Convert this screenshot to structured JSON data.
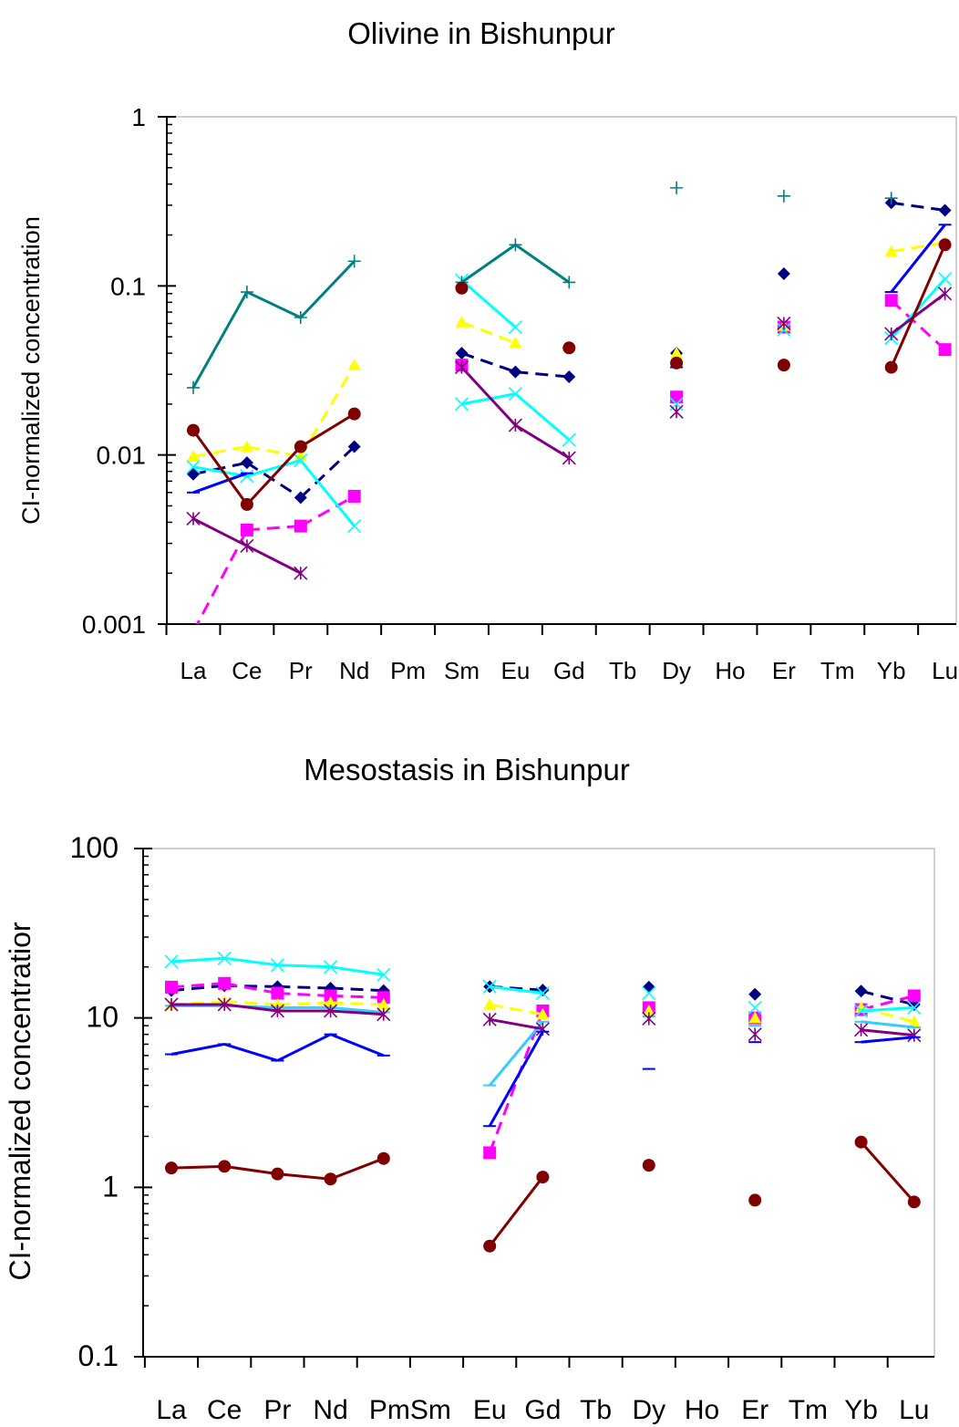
{
  "chart_data": [
    {
      "type": "line",
      "title": "Olivine in Bishunpur",
      "xlabel": "",
      "ylabel": "CI-normalized concentration",
      "y_scale": "log",
      "ylim": [
        0.001,
        1
      ],
      "y_ticks": [
        "1",
        "0.1",
        "0.01",
        "0.001"
      ],
      "grid": false,
      "legend": "none",
      "categories": [
        "La",
        "Ce",
        "Pr",
        "Nd",
        "Pm",
        "Sm",
        "Eu",
        "Gd",
        "Tb",
        "Dy",
        "Ho",
        "Er",
        "Tm",
        "Yb",
        "Lu"
      ],
      "series": [
        {
          "color": "#000080",
          "dash": true,
          "marker": "diamond",
          "values": [
            0.0077,
            0.009,
            0.0056,
            0.0112,
            null,
            0.04,
            0.031,
            0.029,
            null,
            0.04,
            null,
            0.118,
            null,
            0.31,
            0.28
          ]
        },
        {
          "color": "#ff00ff",
          "dash": true,
          "marker": "square",
          "values": [
            0.0009,
            0.0036,
            0.0038,
            0.0057,
            null,
            0.034,
            null,
            null,
            null,
            0.022,
            null,
            0.057,
            null,
            0.082,
            0.042
          ]
        },
        {
          "color": "#ffff00",
          "dash": true,
          "marker": "triangle",
          "values": [
            0.0098,
            0.0112,
            0.0098,
            0.034,
            null,
            0.061,
            0.046,
            null,
            null,
            0.04,
            null,
            0.058,
            null,
            0.16,
            0.18
          ]
        },
        {
          "color": "#00ffff",
          "dash": false,
          "marker": "x",
          "values": [
            0.0085,
            0.0075,
            0.0093,
            0.0038,
            null,
            0.108,
            0.057,
            null,
            null,
            null,
            null,
            null,
            null,
            null,
            null
          ]
        },
        {
          "color": "#00ffff",
          "dash": false,
          "marker": "x",
          "values": [
            null,
            null,
            null,
            null,
            null,
            0.02,
            0.023,
            0.0123,
            null,
            0.02,
            null,
            0.055,
            null,
            0.049,
            0.11
          ]
        },
        {
          "color": "#800080",
          "dash": false,
          "marker": "star",
          "values": [
            0.0042,
            0.0029,
            0.002,
            null,
            null,
            0.033,
            0.015,
            0.0096,
            null,
            0.018,
            null,
            0.06,
            null,
            0.052,
            0.09
          ]
        },
        {
          "color": "#0000ff",
          "dash": false,
          "marker": "dash",
          "values": [
            0.006,
            0.0078,
            null,
            null,
            null,
            null,
            null,
            null,
            null,
            0.033,
            null,
            null,
            null,
            0.092,
            0.23
          ]
        },
        {
          "color": "#008080",
          "dash": false,
          "marker": "plus",
          "values": [
            0.025,
            0.092,
            0.065,
            0.14,
            null,
            0.105,
            0.175,
            0.105,
            null,
            0.38,
            null,
            0.34,
            null,
            0.33,
            null
          ]
        },
        {
          "color": "#800000",
          "dash": false,
          "marker": "circle",
          "values": [
            0.014,
            0.0051,
            0.0112,
            0.0175,
            null,
            0.097,
            null,
            0.043,
            null,
            0.035,
            null,
            0.034,
            null,
            0.033,
            0.175
          ]
        }
      ]
    },
    {
      "type": "line",
      "title": "Mesostasis in Bishunpur",
      "xlabel": "",
      "ylabel": "CI-normalized concentratior",
      "y_scale": "log",
      "ylim": [
        0.1,
        100
      ],
      "y_ticks": [
        "100",
        "10",
        "1",
        "0.1"
      ],
      "grid": false,
      "legend": "none",
      "categories": [
        "La",
        "Ce",
        "Pr",
        "Nd",
        "Pm",
        "Sm",
        "Eu",
        "Gd",
        "Tb",
        "Dy",
        "Ho",
        "Er",
        "Tm",
        "Yb",
        "Lu"
      ],
      "category_labels": [
        "La",
        "Ce",
        "Pr",
        "Nd",
        "PmSm",
        "",
        "Eu",
        "Gd",
        "Tb",
        "Dy",
        "Ho",
        "Er",
        "Tm",
        "Yb",
        "Lu"
      ],
      "series": [
        {
          "color": "#000080",
          "dash": true,
          "marker": "diamond",
          "values": [
            14.5,
            15.5,
            15.3,
            15.0,
            14.5,
            null,
            15.3,
            14.6,
            null,
            15.2,
            null,
            13.8,
            null,
            14.4,
            12.0
          ]
        },
        {
          "color": "#ff00ff",
          "dash": true,
          "marker": "square",
          "values": [
            15.2,
            16.0,
            14.0,
            13.5,
            13.2,
            null,
            1.6,
            11.0,
            null,
            11.5,
            null,
            10.0,
            null,
            11.2,
            13.5
          ]
        },
        {
          "color": "#ffff00",
          "dash": true,
          "marker": "triangle",
          "values": [
            12.0,
            12.5,
            12.0,
            12.3,
            12.0,
            null,
            12.0,
            10.5,
            null,
            11.0,
            null,
            10.0,
            null,
            11.5,
            9.5
          ]
        },
        {
          "color": "#00ffff",
          "dash": false,
          "marker": "x",
          "values": [
            21.5,
            22.5,
            20.5,
            20.0,
            18.0,
            null,
            15.3,
            14.0,
            null,
            14.0,
            null,
            11.5,
            null,
            11.0,
            11.5
          ]
        },
        {
          "color": "#33ccff",
          "dash": false,
          "marker": "dash",
          "values": [
            11.8,
            11.8,
            11.5,
            11.5,
            10.8,
            null,
            4.0,
            9.5,
            null,
            10.2,
            null,
            9.0,
            null,
            9.5,
            8.8
          ]
        },
        {
          "color": "#800080",
          "dash": false,
          "marker": "star",
          "values": [
            12.0,
            12.0,
            11.0,
            11.0,
            10.5,
            null,
            9.8,
            8.6,
            null,
            9.9,
            null,
            8.0,
            null,
            8.5,
            7.9
          ]
        },
        {
          "color": "#0000ff",
          "dash": false,
          "marker": "dash",
          "values": [
            6.1,
            7.0,
            5.6,
            8.0,
            6.0,
            null,
            2.3,
            8.3,
            null,
            5.0,
            null,
            7.2,
            null,
            7.2,
            7.7
          ]
        },
        {
          "color": "#800000",
          "dash": false,
          "marker": "circle",
          "values": [
            1.3,
            1.33,
            1.2,
            1.12,
            1.48,
            null,
            0.45,
            1.15,
            null,
            1.35,
            null,
            0.84,
            null,
            1.85,
            0.82
          ]
        }
      ]
    }
  ]
}
